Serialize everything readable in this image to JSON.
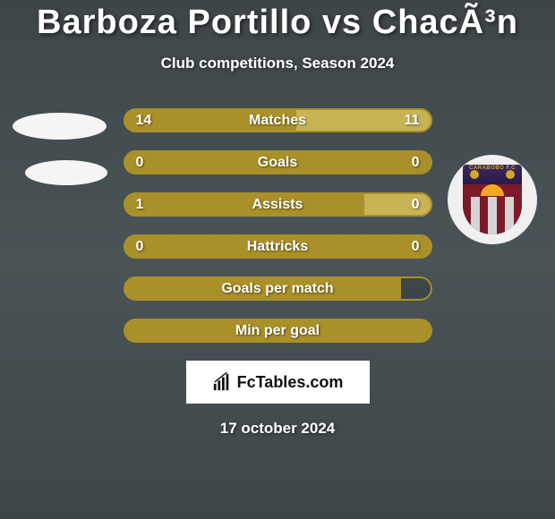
{
  "title": "Barboza Portillo vs ChacÃ³n",
  "subtitle": "Club competitions, Season 2024",
  "date": "17 october 2024",
  "brand": "FcTables.com",
  "crest_right_label": "CARABOBO F.C",
  "colors": {
    "bar_primary": "#a99028",
    "bar_secondary": "#c9b455",
    "bar_outline": "#a99028",
    "text": "#ffffff",
    "bg_top": "#3d4548",
    "brand_bg": "#ffffff"
  },
  "rows": [
    {
      "label": "Matches",
      "left_value": "14",
      "right_value": "11",
      "left_pct": 56,
      "right_pct": 44,
      "left_color": "#a99028",
      "right_color": "#c9b455",
      "show_left": true,
      "show_right": true
    },
    {
      "label": "Goals",
      "left_value": "0",
      "right_value": "0",
      "left_pct": 100,
      "right_pct": 0,
      "left_color": "#a99028",
      "right_color": "#c9b455",
      "show_left": true,
      "show_right": true
    },
    {
      "label": "Assists",
      "left_value": "1",
      "right_value": "0",
      "left_pct": 78,
      "right_pct": 22,
      "left_color": "#a99028",
      "right_color": "#c9b455",
      "show_left": true,
      "show_right": true
    },
    {
      "label": "Hattricks",
      "left_value": "0",
      "right_value": "0",
      "left_pct": 100,
      "right_pct": 0,
      "left_color": "#a99028",
      "right_color": "#c9b455",
      "show_left": true,
      "show_right": true
    },
    {
      "label": "Goals per match",
      "left_value": "",
      "right_value": "",
      "left_pct": 90,
      "right_pct": 0,
      "left_color": "#a99028",
      "right_color": "#c9b455",
      "show_left": false,
      "show_right": false
    },
    {
      "label": "Min per goal",
      "left_value": "",
      "right_value": "",
      "left_pct": 100,
      "right_pct": 0,
      "left_color": "#a99028",
      "right_color": "#c9b455",
      "show_left": false,
      "show_right": false
    }
  ]
}
